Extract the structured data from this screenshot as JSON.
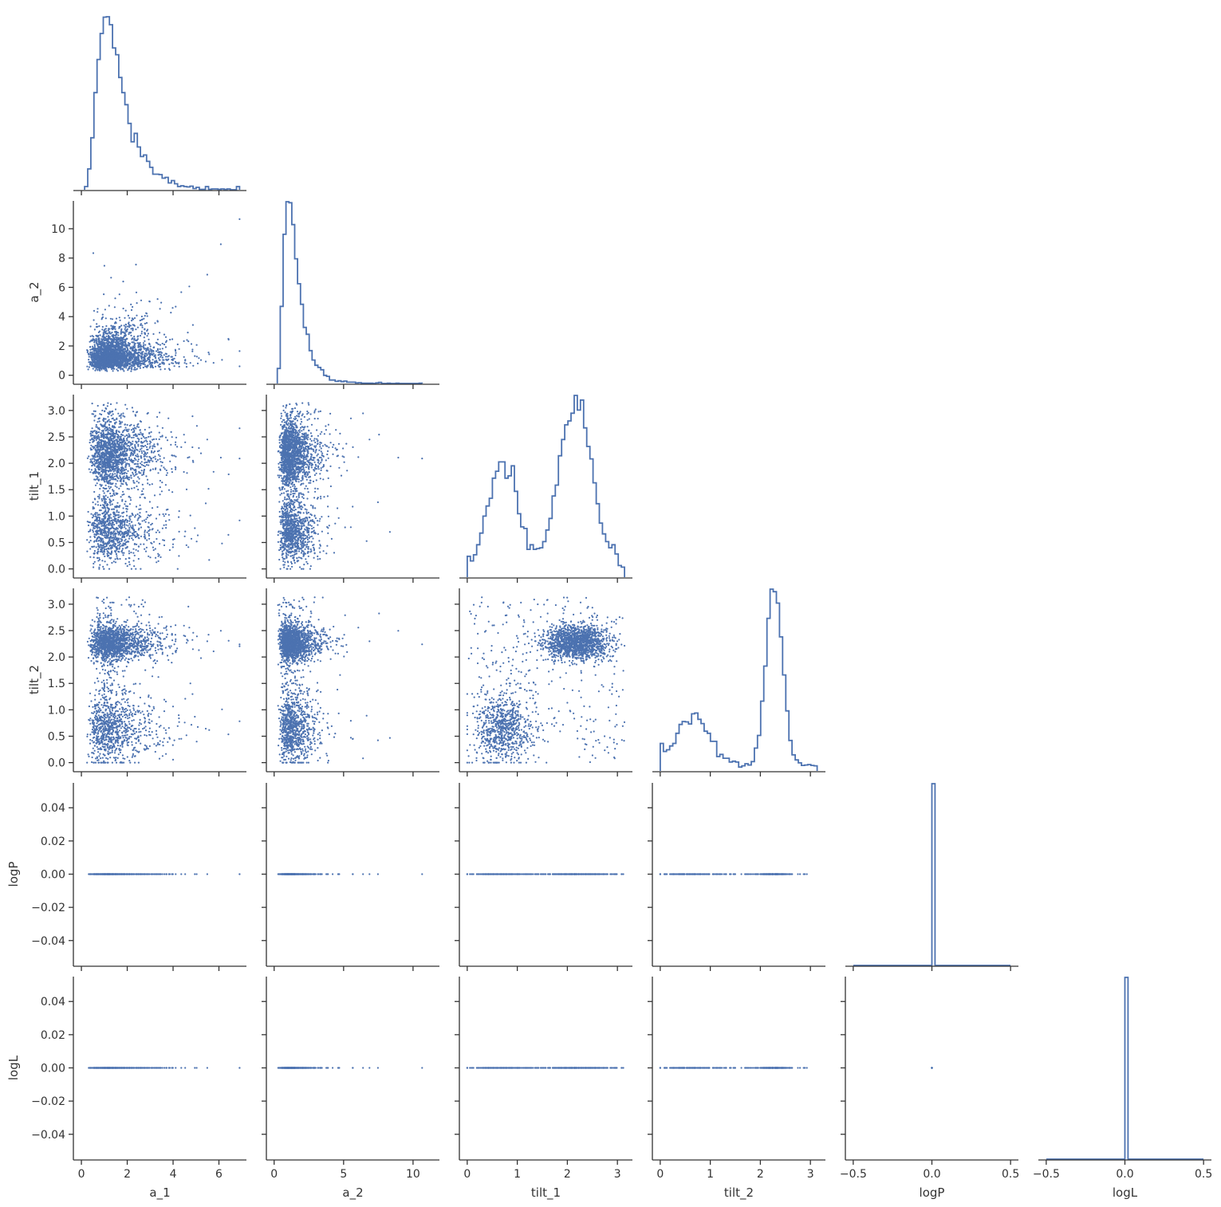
{
  "chart_data": {
    "type": "scatter",
    "kind": "corner pair plot",
    "variables": [
      "a_1",
      "a_2",
      "tilt_1",
      "tilt_2",
      "logP",
      "logL"
    ],
    "axis_labels": {
      "rows": [
        "",
        "a_2",
        "tilt_1",
        "tilt_2",
        "logP",
        "logL"
      ],
      "bottom": [
        "a_1",
        "a_2",
        "tilt_1",
        "tilt_2",
        "logP",
        "logL"
      ]
    },
    "ranges": {
      "a_1": [
        -0.35,
        7.2
      ],
      "a_2": [
        -0.56,
        11.9
      ],
      "tilt_1": [
        -0.157,
        3.3
      ],
      "tilt_2": [
        -0.157,
        3.3
      ],
      "logP": [
        -0.055,
        0.055
      ],
      "logL": [
        -0.055,
        0.055
      ]
    },
    "ticks": {
      "a_1": [
        0,
        2,
        4,
        6
      ],
      "a_2": [
        0,
        5,
        10
      ],
      "tilt_1": [
        0,
        1,
        2,
        3
      ],
      "tilt_2": [
        0,
        1,
        2,
        3
      ],
      "logP": [
        -0.5,
        0.0,
        0.5
      ],
      "logL": [
        -0.5,
        0.0,
        0.5
      ]
    },
    "tick_labels": {
      "a_1": [
        "0",
        "2",
        "4",
        "6"
      ],
      "a_2": [
        "0",
        "5",
        "10"
      ],
      "tilt_1": [
        "0",
        "1",
        "2",
        "3"
      ],
      "tilt_2": [
        "0",
        "1",
        "2",
        "3"
      ],
      "logP": [
        "−0.5",
        "0.0",
        "0.5"
      ],
      "logL": [
        "−0.5",
        "0.0",
        "0.5"
      ]
    },
    "row_ticks": {
      "a_2": [
        0,
        2,
        4,
        6,
        8,
        10
      ],
      "tilt_1": [
        0.0,
        0.5,
        1.0,
        1.5,
        2.0,
        2.5,
        3.0
      ],
      "tilt_2": [
        0.0,
        0.5,
        1.0,
        1.5,
        2.0,
        2.5,
        3.0
      ],
      "logP": [
        -0.04,
        -0.02,
        0.0,
        0.02,
        0.04
      ],
      "logL": [
        -0.04,
        -0.02,
        0.0,
        0.02,
        0.04
      ]
    },
    "row_tick_labels": {
      "a_2": [
        "0",
        "2",
        "4",
        "6",
        "8",
        "10"
      ],
      "tilt_1": [
        "0.0",
        "0.5",
        "1.0",
        "1.5",
        "2.0",
        "2.5",
        "3.0"
      ],
      "tilt_2": [
        "0.0",
        "0.5",
        "1.0",
        "1.5",
        "2.0",
        "2.5",
        "3.0"
      ],
      "logP": [
        "−0.04",
        "−0.02",
        "0.00",
        "0.02",
        "0.04"
      ],
      "logL": [
        "−0.04",
        "−0.02",
        "0.00",
        "0.02",
        "0.04"
      ]
    },
    "histogram_type": "step",
    "bins": 50,
    "samples": 5000,
    "marker_size": "small",
    "grid": false,
    "legend": "none",
    "colors": {
      "series": "#4c72b0",
      "axes": "#333333",
      "background": "#ffffff"
    }
  }
}
